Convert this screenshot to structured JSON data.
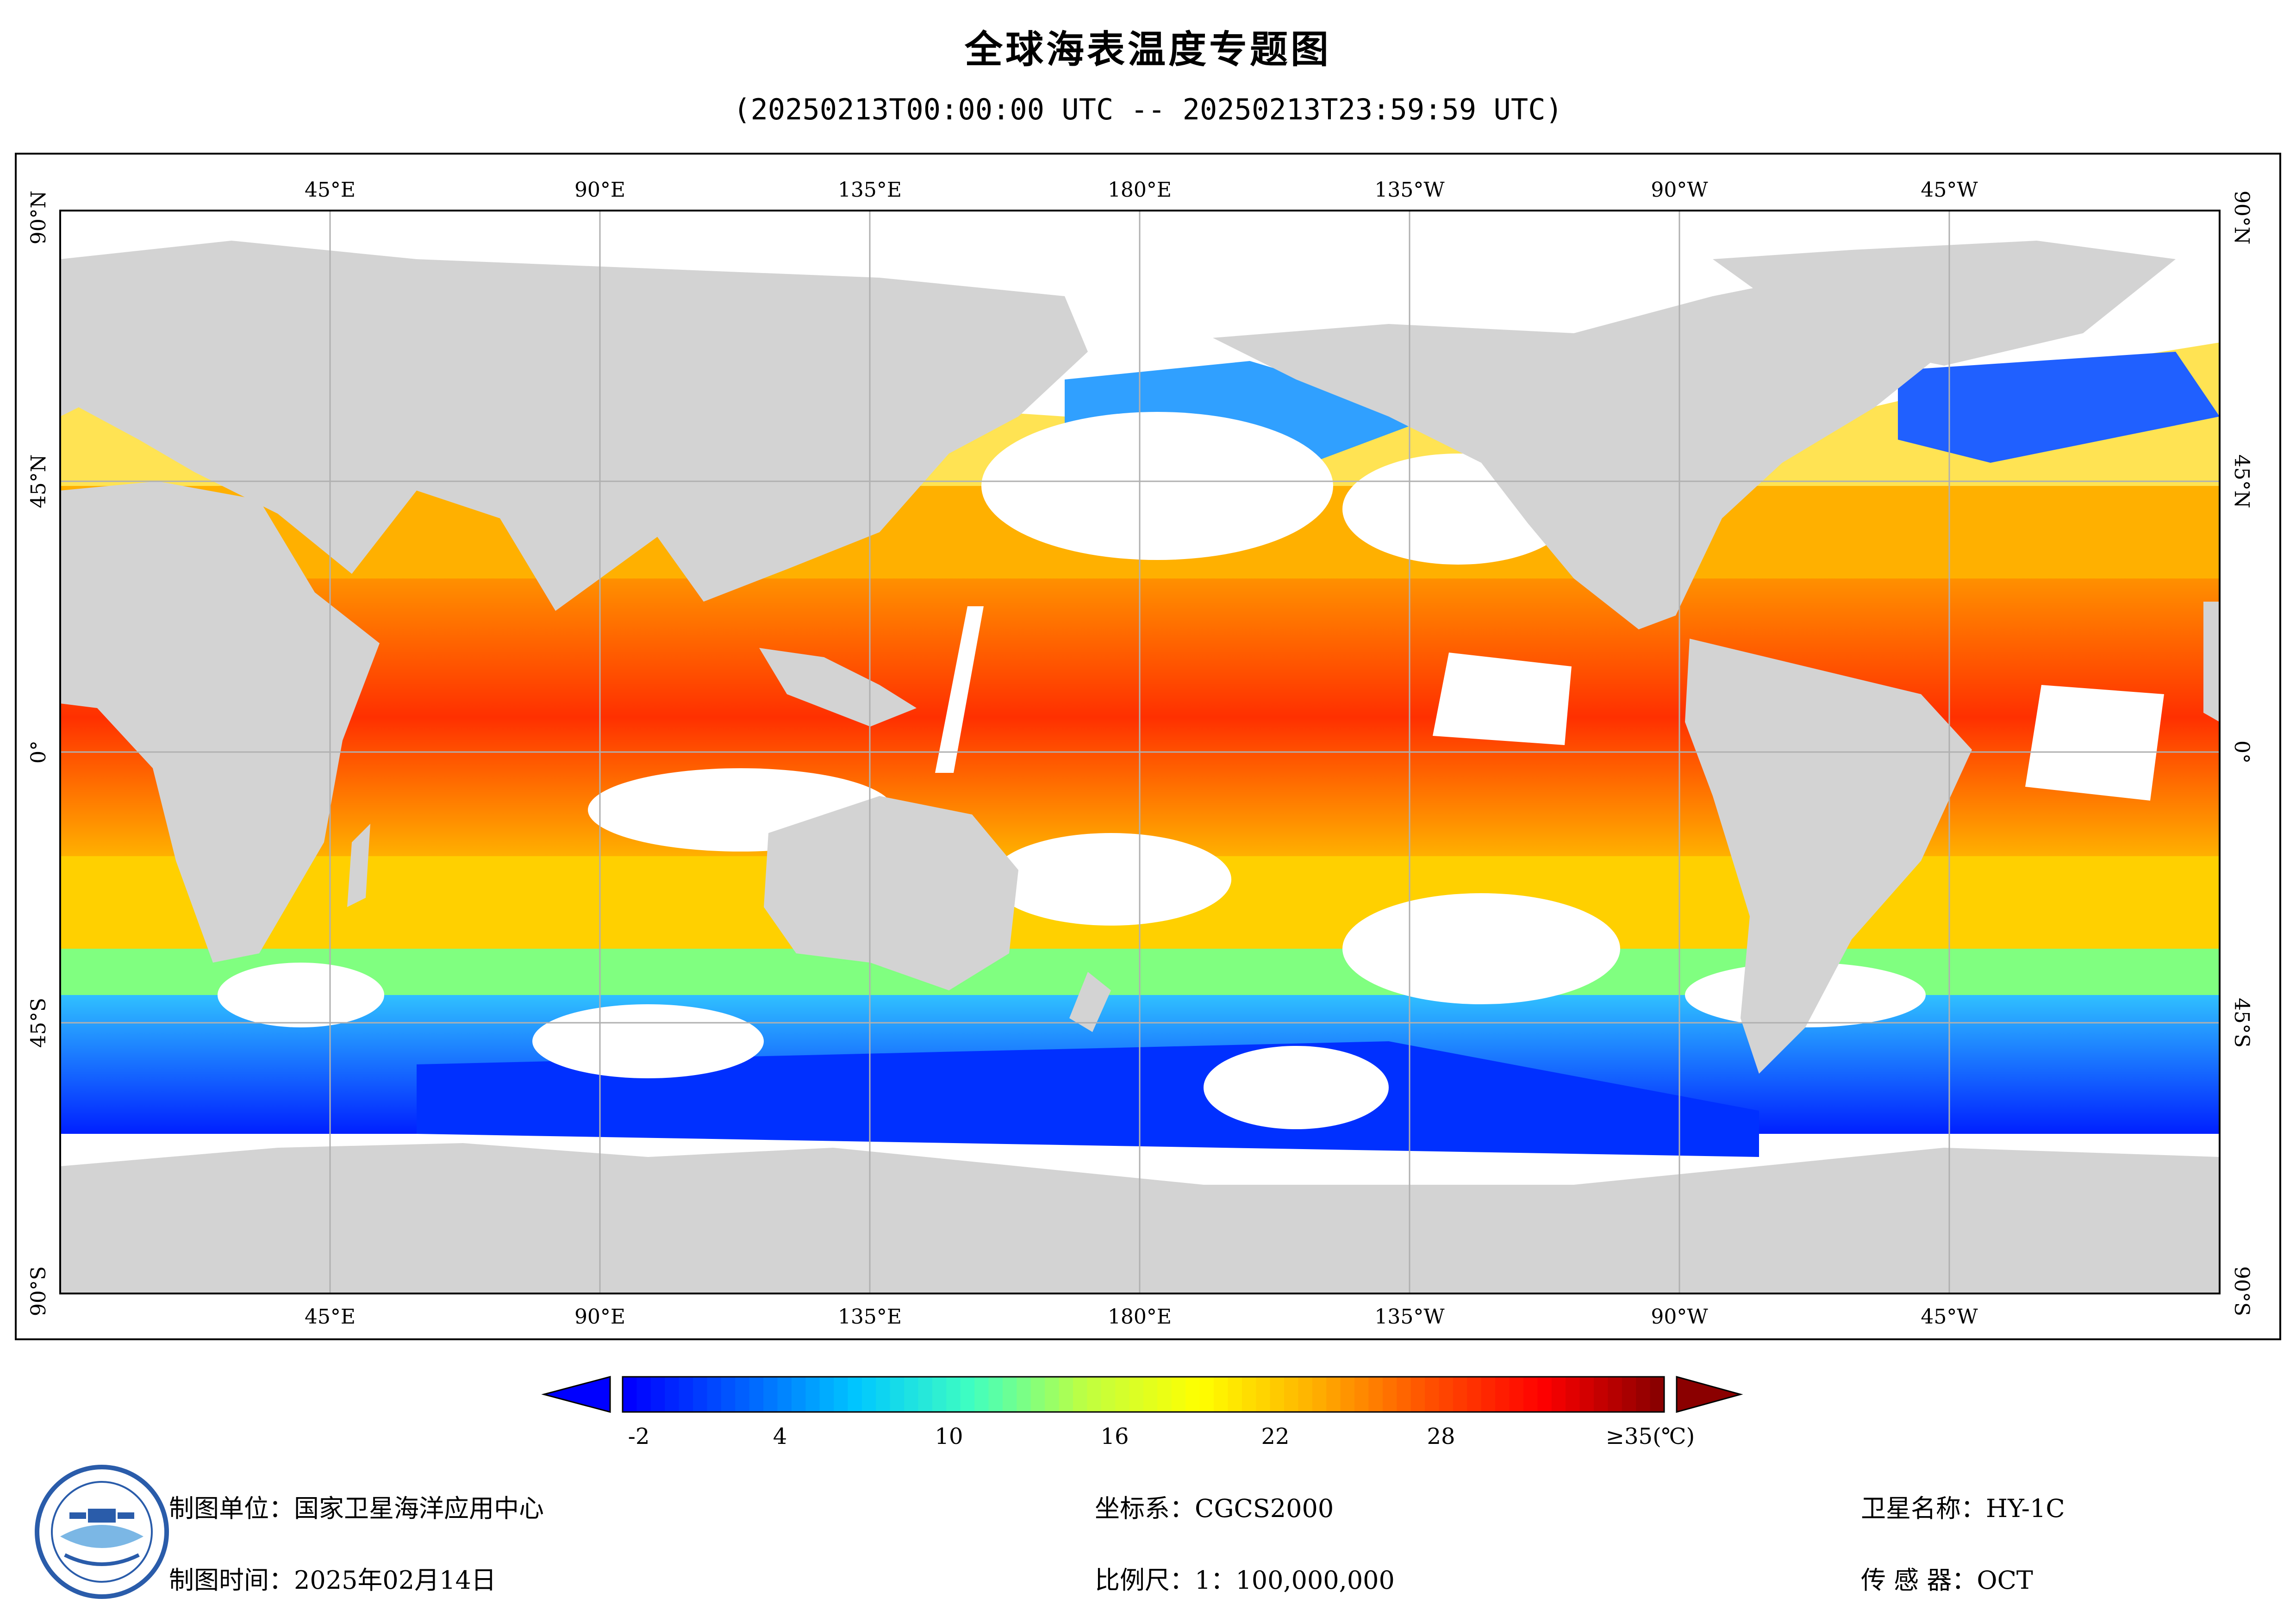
{
  "title": "全球海表温度专题图",
  "subtitle": "(20250213T00:00:00 UTC -- 20250213T23:59:59 UTC)",
  "map": {
    "top_lon_labels": [
      "45°E",
      "90°E",
      "135°E",
      "180°E",
      "135°W",
      "90°W",
      "45°W"
    ],
    "bottom_lon_labels": [
      "45°E",
      "90°E",
      "135°E",
      "180°E",
      "135°W",
      "90°W",
      "45°W"
    ],
    "lat_labels": [
      "90°N",
      "45°N",
      "0°",
      "45°S",
      "90°S"
    ],
    "colors": {
      "land": "#d3d3d3",
      "no_data": "#ffffff",
      "grid": "#b0b0b0"
    }
  },
  "legend": {
    "ticks": [
      "-2",
      "4",
      "10",
      "16",
      "22",
      "28",
      "≥35(℃)"
    ],
    "range": [
      -2,
      35
    ],
    "colormap": [
      "#0000ff",
      "#0060ff",
      "#00c8ff",
      "#40ffc0",
      "#c0ff40",
      "#ffff00",
      "#ffb000",
      "#ff5000",
      "#ff0000",
      "#8b0000"
    ]
  },
  "footer": {
    "org": "制图单位：国家卫星海洋应用中心",
    "time": "制图时间：2025年02月14日",
    "crs": "坐标系：CGCS2000",
    "scale": "比例尺：1：100,000,000",
    "satellite": "卫星名称：HY-1C",
    "sensor": "传 感 器：OCT"
  },
  "logo_text": "国家卫星海洋应用中心 NATIONAL SATELLITE OCEAN APPLICATION SERVICE"
}
